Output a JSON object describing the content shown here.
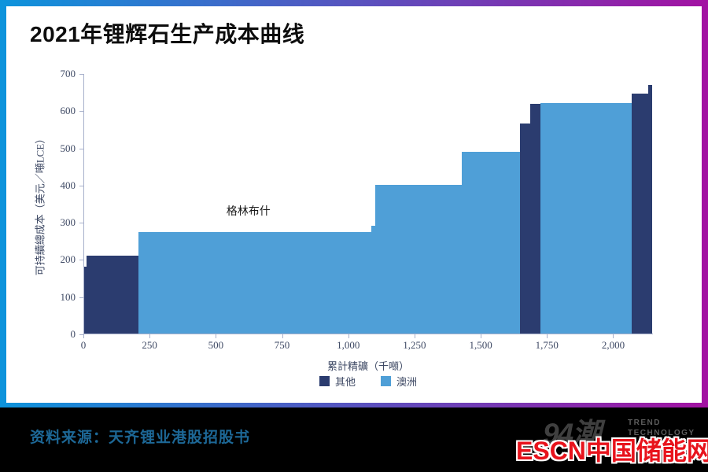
{
  "frame": {
    "gradient_from": "#0d94dc",
    "gradient_to": "#a312a2",
    "footer_bg": "#000000"
  },
  "title": "2021年锂辉石生产成本曲线",
  "chart_data": {
    "type": "bar",
    "subtype": "stepped-cost-curve",
    "title": "2021年锂辉石生产成本曲线",
    "xlabel": "累計精礦（千噸）",
    "ylabel": "可持續總成本（美元／噸LCE）",
    "xlim": [
      0,
      2150
    ],
    "ylim": [
      0,
      700
    ],
    "grid": false,
    "legend_position": "bottom-center",
    "x_ticks": [
      {
        "value": 0,
        "label": "0"
      },
      {
        "value": 250,
        "label": "250"
      },
      {
        "value": 500,
        "label": "500"
      },
      {
        "value": 750,
        "label": "750"
      },
      {
        "value": 1000,
        "label": "1,000"
      },
      {
        "value": 1250,
        "label": "1,250"
      },
      {
        "value": 1500,
        "label": "1,500"
      },
      {
        "value": 1750,
        "label": "1,750"
      },
      {
        "value": 2000,
        "label": "2,000"
      }
    ],
    "y_ticks": [
      {
        "value": 0,
        "label": "0"
      },
      {
        "value": 100,
        "label": "100"
      },
      {
        "value": 200,
        "label": "200"
      },
      {
        "value": 300,
        "label": "300"
      },
      {
        "value": 400,
        "label": "400"
      },
      {
        "value": 500,
        "label": "500"
      },
      {
        "value": 600,
        "label": "600"
      },
      {
        "value": 700,
        "label": "700"
      }
    ],
    "series": [
      {
        "name": "其他",
        "color": "#2b3c6f"
      },
      {
        "name": "澳洲",
        "color": "#4f9fd7"
      }
    ],
    "segments": [
      {
        "from_kt": 0,
        "to_kt": 10,
        "cost_usd_per_t": 180,
        "series": "其他"
      },
      {
        "from_kt": 10,
        "to_kt": 205,
        "cost_usd_per_t": 210,
        "series": "其他"
      },
      {
        "from_kt": 205,
        "to_kt": 1085,
        "cost_usd_per_t": 272,
        "series": "澳洲"
      },
      {
        "from_kt": 1085,
        "to_kt": 1100,
        "cost_usd_per_t": 290,
        "series": "澳洲"
      },
      {
        "from_kt": 1100,
        "to_kt": 1425,
        "cost_usd_per_t": 400,
        "series": "澳洲"
      },
      {
        "from_kt": 1425,
        "to_kt": 1645,
        "cost_usd_per_t": 488,
        "series": "澳洲"
      },
      {
        "from_kt": 1645,
        "to_kt": 1683,
        "cost_usd_per_t": 565,
        "series": "其他"
      },
      {
        "from_kt": 1683,
        "to_kt": 1723,
        "cost_usd_per_t": 617,
        "series": "其他"
      },
      {
        "from_kt": 1723,
        "to_kt": 2068,
        "cost_usd_per_t": 620,
        "series": "澳洲"
      },
      {
        "from_kt": 2068,
        "to_kt": 2145,
        "cost_usd_per_t": 645,
        "series": "其他"
      },
      {
        "from_kt": 2130,
        "to_kt": 2145,
        "cost_usd_per_t": 668,
        "series": "其他"
      }
    ],
    "annotations": [
      {
        "text": "格林布什",
        "x_kt": 620,
        "y_usd": 332
      }
    ]
  },
  "footer": {
    "source": "资料来源：天齐锂业港股招股书",
    "logo_text": "94潮",
    "logo_sub_line1": "TREND",
    "logo_sub_line2": "TECHNOLOGY",
    "brand": "ESCN中国储能网"
  }
}
